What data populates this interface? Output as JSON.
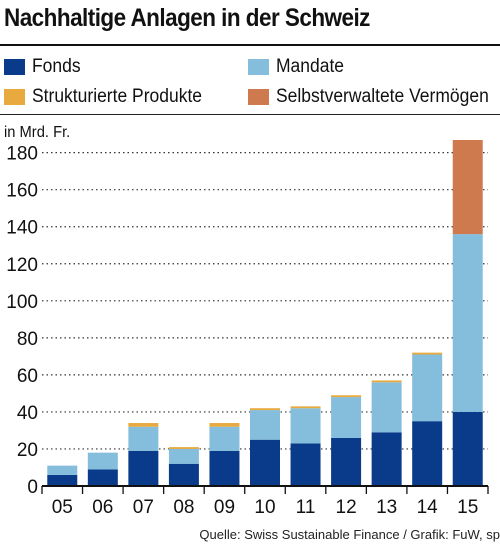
{
  "title": "Nachhaltige Anlagen in der Schweiz",
  "unit_label": "in Mrd. Fr.",
  "source": "Quelle: Swiss Sustainable Finance / Grafik: FuW, sp",
  "legend": [
    {
      "label": "Fonds",
      "color": "#0a3a8a"
    },
    {
      "label": "Mandate",
      "color": "#84bedc"
    },
    {
      "label": "Strukturierte Produkte",
      "color": "#e8aa3e"
    },
    {
      "label": "Selbstverwaltete Vermögen",
      "color": "#cf7a4e"
    }
  ],
  "chart_data": {
    "type": "bar",
    "stacked": true,
    "categories": [
      "05",
      "06",
      "07",
      "08",
      "09",
      "10",
      "11",
      "12",
      "13",
      "14",
      "15"
    ],
    "series": [
      {
        "name": "Fonds",
        "color": "#0a3a8a",
        "values": [
          6,
          9,
          19,
          12,
          19,
          25,
          23,
          26,
          29,
          35,
          40
        ]
      },
      {
        "name": "Mandate",
        "color": "#84bedc",
        "values": [
          5,
          9,
          13,
          8,
          13,
          16,
          19,
          22,
          27,
          36,
          96
        ]
      },
      {
        "name": "Strukturierte Produkte",
        "color": "#e8aa3e",
        "values": [
          0,
          0,
          2,
          1,
          2,
          1,
          1,
          1,
          1,
          1,
          0
        ]
      },
      {
        "name": "Selbstverwaltete Vermögen",
        "color": "#cf7a4e",
        "values": [
          0,
          0,
          0,
          0,
          0,
          0,
          0,
          0,
          0,
          0,
          55
        ]
      }
    ],
    "title": "Nachhaltige Anlagen in der Schweiz",
    "ylabel": "in Mrd. Fr.",
    "ylim": [
      0,
      190
    ],
    "yticks": [
      0,
      20,
      40,
      60,
      80,
      100,
      120,
      140,
      160,
      180
    ],
    "grid": "horizontal dotted",
    "legend_position": "top"
  }
}
